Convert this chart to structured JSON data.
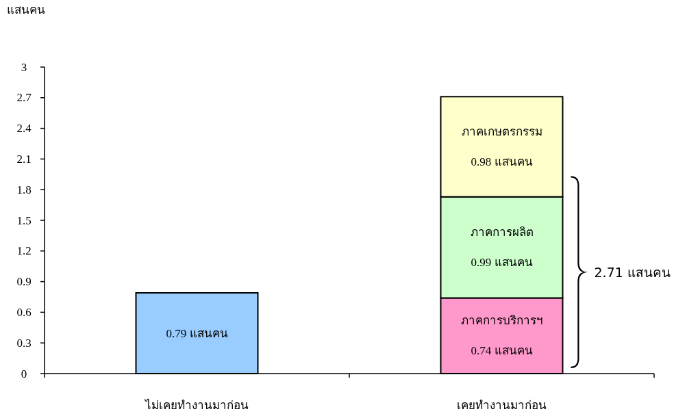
{
  "chart_data": {
    "type": "bar",
    "stacked": true,
    "ylabel": "แสนคน",
    "categories": [
      "ไม่เคยทำงานมาก่อน",
      "เคยทำงานมาก่อน"
    ],
    "series": [
      {
        "color": "#99ccff",
        "values": [
          0.79,
          null
        ],
        "value_labels": [
          "0.79 แสนคน",
          null
        ]
      },
      {
        "name": "ภาคการบริการฯ",
        "color": "#ff99cc",
        "values": [
          null,
          0.74
        ],
        "value_labels": [
          null,
          "0.74 แสนคน"
        ]
      },
      {
        "name": "ภาคการผลิต",
        "color": "#ccffcc",
        "values": [
          null,
          0.99
        ],
        "value_labels": [
          null,
          "0.99 แสนคน"
        ]
      },
      {
        "name": "ภาคเกษตรกรรม",
        "color": "#ffffcc",
        "values": [
          null,
          0.98
        ],
        "value_labels": [
          null,
          "0.98 แสนคน"
        ]
      }
    ],
    "totals": [
      null,
      "2.71 แสนคน"
    ],
    "ylim": [
      0,
      3
    ],
    "yticks": [
      0,
      0.3,
      0.6,
      0.9,
      1.2,
      1.5,
      1.8,
      2.1,
      2.4,
      2.7,
      3
    ]
  }
}
